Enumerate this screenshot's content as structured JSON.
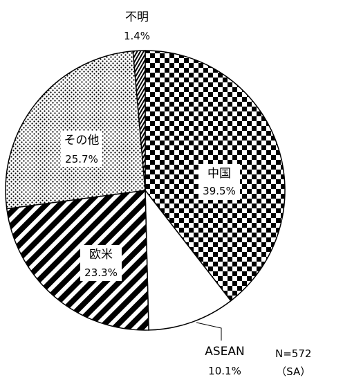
{
  "chart_data": {
    "type": "pie",
    "start": "top, clockwise",
    "slices": [
      {
        "label": "中国",
        "value": 39.5,
        "value_text": "39.5%",
        "pattern": "checkerboard"
      },
      {
        "label": "ASEAN",
        "value": 10.1,
        "value_text": "10.1%",
        "pattern": "white"
      },
      {
        "label": "欧米",
        "value": 23.3,
        "value_text": "23.3%",
        "pattern": "diagonal-stripes"
      },
      {
        "label": "その他",
        "value": 25.7,
        "value_text": "25.7%",
        "pattern": "dots"
      },
      {
        "label": "不明",
        "value": 1.4,
        "value_text": "1.4%",
        "pattern": "dense-stripes"
      }
    ]
  },
  "note": {
    "n": "N=572",
    "type": "（SA）"
  }
}
